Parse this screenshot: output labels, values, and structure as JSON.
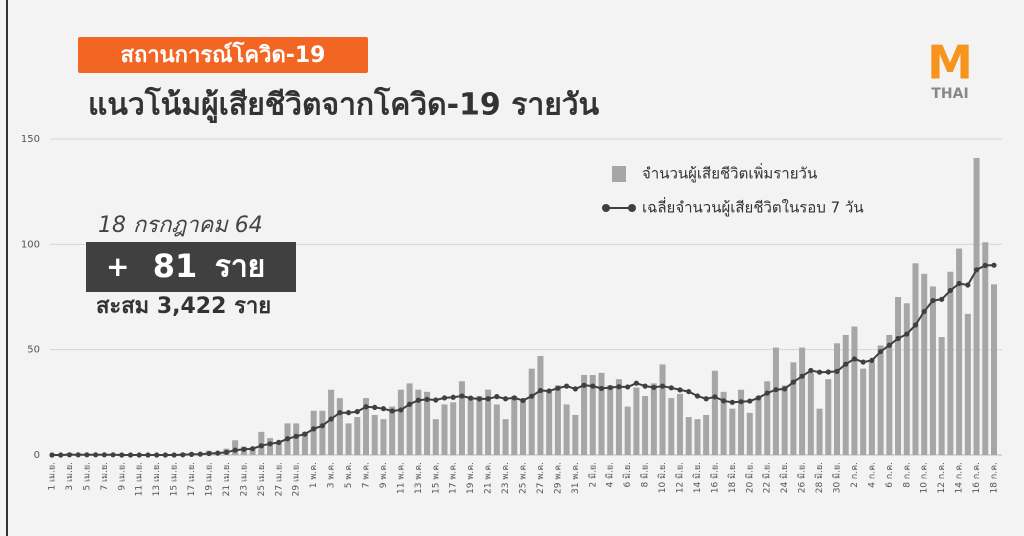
{
  "header": {
    "tag": "สถานการณ์โควิด-19",
    "title": "แนวโน้มผู้เสียชีวิตจากโควิด-19 รายวัน",
    "logo_top": "M",
    "logo_bottom": "THAI"
  },
  "summary": {
    "date": "18 กรกฎาคม 64",
    "prefix": "+",
    "today": 81,
    "unit": "ราย",
    "cumulative": "สะสม 3,422 ราย"
  },
  "chart_data": {
    "type": "bar-line",
    "ylim": [
      0,
      150
    ],
    "yticks": [
      0,
      50,
      100,
      150
    ],
    "grid": true,
    "categories": [
      "1 เม.ย.",
      null,
      "3 เม.ย.",
      null,
      "5 เม.ย.",
      null,
      "7 เม.ย.",
      null,
      "9 เม.ย.",
      null,
      "11 เม.ย.",
      null,
      "13 เม.ย.",
      null,
      "15 เม.ย.",
      null,
      "17 เม.ย.",
      null,
      "19 เม.ย.",
      null,
      "21 เม.ย.",
      null,
      "23 เม.ย.",
      null,
      "25 เม.ย.",
      null,
      "27 เม.ย.",
      null,
      "29 เม.ย.",
      null,
      "1 พ.ค.",
      null,
      "3 พ.ค.",
      null,
      "5 พ.ค.",
      null,
      "7 พ.ค.",
      null,
      "9 พ.ค.",
      null,
      "11 พ.ค.",
      null,
      "13 พ.ค.",
      null,
      "15 พ.ค.",
      null,
      "17 พ.ค.",
      null,
      "19 พ.ค.",
      null,
      "21 พ.ค.",
      null,
      "23 พ.ค.",
      null,
      "25 พ.ค.",
      null,
      "27 พ.ค.",
      null,
      "29 พ.ค.",
      null,
      "31 พ.ค.",
      null,
      "2 มิ.ย.",
      null,
      "4 มิ.ย.",
      null,
      "6 มิ.ย.",
      null,
      "8 มิ.ย.",
      null,
      "10 มิ.ย.",
      null,
      "12 มิ.ย.",
      null,
      "14 มิ.ย.",
      null,
      "16 มิ.ย.",
      null,
      "18 มิ.ย.",
      null,
      "20 มิ.ย.",
      null,
      "22 มิ.ย.",
      null,
      "24 มิ.ย.",
      null,
      "26 มิ.ย.",
      null,
      "28 มิ.ย.",
      null,
      "30 มิ.ย.",
      null,
      "2 ก.ค.",
      null,
      "4 ก.ค.",
      null,
      "6 ก.ค.",
      null,
      "8 ก.ค.",
      null,
      "10 ก.ค.",
      null,
      "12 ก.ค.",
      null,
      "14 ก.ค.",
      null,
      "16 ก.ค.",
      null,
      "18 ก.ค."
    ],
    "series": [
      {
        "name": "จำนวนผู้เสียชีวิตเพิ่มรายวัน",
        "type": "bar",
        "color": "#a6a6a6",
        "values": [
          0,
          0,
          1,
          0,
          0,
          0,
          0,
          0,
          0,
          0,
          0,
          0,
          0,
          0,
          0,
          1,
          1,
          1,
          2,
          1,
          3,
          7,
          4,
          3,
          11,
          8,
          6,
          15,
          15,
          11,
          21,
          21,
          31,
          27,
          15,
          18,
          27,
          19,
          17,
          23,
          31,
          34,
          31,
          30,
          17,
          24,
          25,
          35,
          27,
          28,
          31,
          24,
          17,
          28,
          26,
          41,
          47,
          30,
          33,
          24,
          19,
          38,
          38,
          39,
          33,
          36,
          23,
          32,
          28,
          34,
          43,
          27,
          29,
          18,
          17,
          19,
          40,
          30,
          22,
          31,
          20,
          28,
          35,
          51,
          33,
          44,
          51,
          39,
          22,
          36,
          53,
          57,
          61,
          41,
          44,
          52,
          57,
          75,
          72,
          91,
          86,
          80,
          56,
          87,
          98,
          67,
          141,
          101,
          81
        ]
      },
      {
        "name": "เฉลี่ยจำนวนผู้เสียชีวิตในรอบ 7 วัน",
        "type": "line",
        "color": "#404040",
        "values": [
          0,
          0,
          0.1,
          0.1,
          0.1,
          0.1,
          0.1,
          0.1,
          0,
          0,
          0,
          0,
          0,
          0,
          0,
          0.1,
          0.3,
          0.4,
          0.7,
          0.9,
          1.3,
          2.3,
          2.7,
          3,
          4.4,
          5.3,
          6,
          7.7,
          8.9,
          9.9,
          12.4,
          13.9,
          17.1,
          20.1,
          20.1,
          20.6,
          22.9,
          22.6,
          22,
          20.9,
          21.4,
          24.1,
          26,
          26.4,
          26.1,
          27.1,
          27.4,
          28,
          27,
          26.6,
          26.7,
          27.7,
          26.7,
          27.1,
          25.9,
          27.9,
          30.6,
          30.4,
          31.7,
          32.7,
          31.4,
          33.1,
          32.7,
          31.6,
          32,
          32.4,
          32.3,
          34.1,
          32.7,
          32.1,
          32.7,
          31.9,
          30.9,
          30.1,
          28,
          26.7,
          27.6,
          25.7,
          25,
          25.3,
          25.6,
          27.1,
          29.4,
          31,
          31.4,
          34.6,
          37.4,
          40.1,
          39.3,
          39.4,
          39.7,
          43.1,
          45.6,
          44.1,
          44.9,
          49.1,
          52.1,
          55.3,
          57.4,
          61.7,
          68.1,
          73.3,
          73.9,
          78.1,
          81.4,
          80.7,
          87.9,
          90,
          90.1
        ]
      }
    ]
  }
}
